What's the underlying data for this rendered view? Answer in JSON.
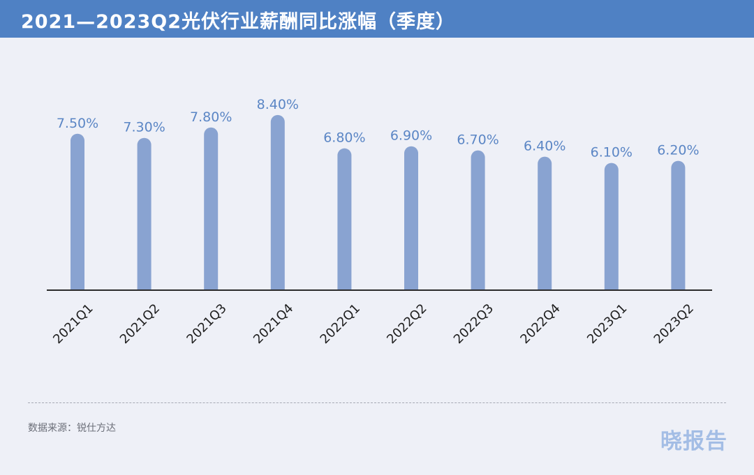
{
  "header": {
    "title": "2021—2023Q2光伏行业薪酬同比涨幅（季度）"
  },
  "chart_data": {
    "type": "bar",
    "title": "2021—2023Q2光伏行业薪酬同比涨幅（季度）",
    "categories": [
      "2021Q1",
      "2021Q2",
      "2021Q3",
      "2021Q4",
      "2022Q1",
      "2022Q2",
      "2022Q3",
      "2022Q4",
      "2023Q1",
      "2023Q2"
    ],
    "values": [
      7.5,
      7.3,
      7.8,
      8.4,
      6.8,
      6.9,
      6.7,
      6.4,
      6.1,
      6.2
    ],
    "data_labels": [
      "7.50%",
      "7.30%",
      "7.80%",
      "8.40%",
      "6.80%",
      "6.90%",
      "6.70%",
      "6.40%",
      "6.10%",
      "6.20%"
    ],
    "unit": "%",
    "ylim": [
      0,
      9
    ],
    "grid": false,
    "legend": "none",
    "bar_color": "#89a3d1",
    "label_color": "#5b86c5"
  },
  "footer": {
    "source": "数据来源：锐仕方达",
    "watermark": "晓报告"
  }
}
